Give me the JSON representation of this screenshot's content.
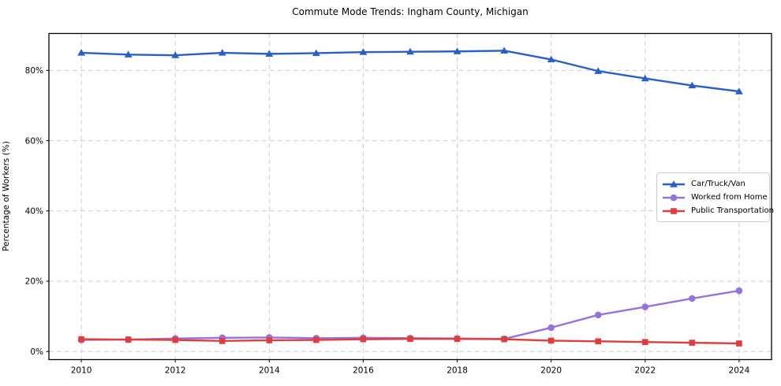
{
  "chart_data": {
    "type": "line",
    "title": "Commute Mode Trends: Ingham County, Michigan",
    "xlabel": "",
    "ylabel": "Percentage of Workers (%)",
    "x": [
      2010,
      2011,
      2012,
      2013,
      2014,
      2015,
      2016,
      2017,
      2018,
      2019,
      2020,
      2021,
      2022,
      2023,
      2024
    ],
    "series": [
      {
        "name": "Car/Truck/Van",
        "color": "#2a5fc4",
        "marker": "triangle",
        "values": [
          85.0,
          84.5,
          84.3,
          85.0,
          84.7,
          84.9,
          85.2,
          85.3,
          85.4,
          85.6,
          83.1,
          79.8,
          77.7,
          75.7,
          74.0
        ]
      },
      {
        "name": "Worked from Home",
        "color": "#9673d8",
        "marker": "circle",
        "values": [
          3.3,
          3.4,
          3.7,
          3.9,
          4.0,
          3.8,
          3.9,
          3.8,
          3.7,
          3.6,
          6.8,
          10.4,
          12.7,
          15.1,
          17.3
        ]
      },
      {
        "name": "Public Transportation",
        "color": "#e03e3e",
        "marker": "square",
        "values": [
          3.5,
          3.4,
          3.3,
          3.0,
          3.2,
          3.3,
          3.5,
          3.6,
          3.6,
          3.5,
          3.1,
          2.9,
          2.7,
          2.5,
          2.3
        ]
      }
    ],
    "xticks": [
      2010,
      2012,
      2014,
      2016,
      2018,
      2020,
      2022,
      2024
    ],
    "ytick_labels": [
      "0%",
      "20%",
      "40%",
      "60%",
      "80%"
    ],
    "ytick_values": [
      0,
      20,
      40,
      60,
      80
    ],
    "xlim": [
      2009.31,
      2024.69
    ],
    "ylim": [
      -2.3,
      90.5
    ],
    "grid": true,
    "grid_color": "#cccccc",
    "spine_color": "#000000",
    "legend_position": "center right"
  }
}
